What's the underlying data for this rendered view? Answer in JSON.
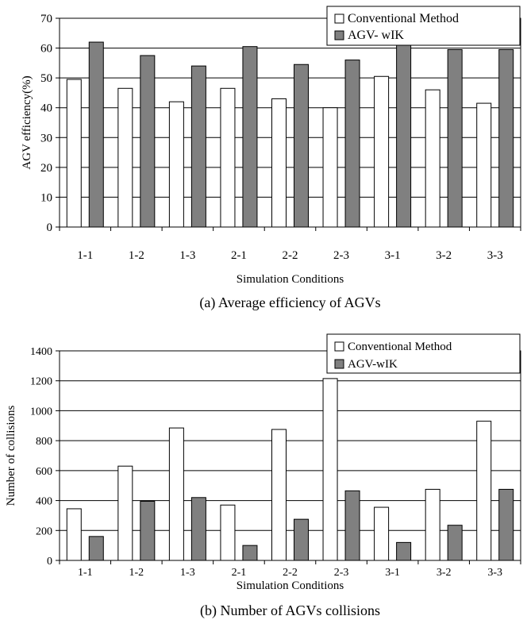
{
  "chart_data": [
    {
      "type": "bar",
      "caption": "(a) Average efficiency of AGVs",
      "xlabel": "Simulation Conditions",
      "ylabel": "AGV efficiency(%)",
      "ylim": [
        0,
        70
      ],
      "yticks": [
        0,
        10,
        20,
        30,
        40,
        50,
        60,
        70
      ],
      "grid": true,
      "legend": "top-right",
      "categories": [
        "1-1",
        "1-2",
        "1-3",
        "2-1",
        "2-2",
        "2-3",
        "3-1",
        "3-2",
        "3-3"
      ],
      "series": [
        {
          "name": "Conventional Method",
          "color": "#ffffff",
          "values": [
            49.5,
            46.5,
            42,
            46.5,
            43,
            40,
            50.5,
            46,
            41.5
          ]
        },
        {
          "name": "AGV- wIK",
          "color": "#808080",
          "values": [
            62,
            57.5,
            54,
            60.5,
            54.5,
            56,
            61,
            59.5,
            59.5
          ]
        }
      ]
    },
    {
      "type": "bar",
      "caption": "(b) Number of AGVs collisions",
      "xlabel": "Simulation Conditions",
      "ylabel": "Number of collisions",
      "ylim": [
        0,
        1400
      ],
      "yticks": [
        0,
        200,
        400,
        600,
        800,
        1000,
        1200,
        1400
      ],
      "grid": true,
      "legend": "top-right",
      "categories": [
        "1-1",
        "1-2",
        "1-3",
        "2-1",
        "2-2",
        "2-3",
        "3-1",
        "3-2",
        "3-3"
      ],
      "series": [
        {
          "name": "Conventional Method",
          "color": "#ffffff",
          "values": [
            345,
            630,
            885,
            370,
            875,
            1215,
            355,
            475,
            930
          ]
        },
        {
          "name": "AGV-wIK",
          "color": "#808080",
          "values": [
            160,
            395,
            420,
            100,
            275,
            465,
            120,
            235,
            475
          ]
        }
      ]
    }
  ]
}
